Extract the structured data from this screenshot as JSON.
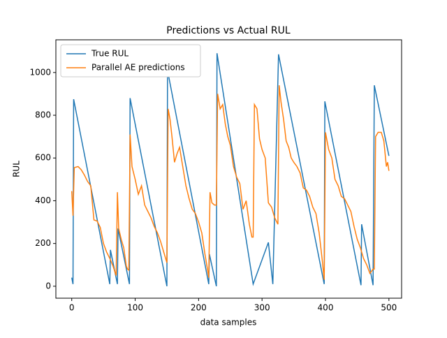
{
  "chart_data": {
    "type": "line",
    "title": "Predictions vs Actual RUL",
    "x_label": "data samples",
    "y_label": "RUL",
    "xlim": [
      -25,
      520
    ],
    "ylim": [
      -56,
      1153
    ],
    "xticks": [
      0,
      100,
      200,
      300,
      400,
      500
    ],
    "yticks": [
      0,
      200,
      400,
      600,
      800,
      1000
    ],
    "legend": "upper left",
    "series": [
      {
        "name": "True RUL",
        "color": "#1f77b4",
        "x": [
          0,
          2,
          3,
          60,
          61,
          72,
          73,
          91,
          92,
          150,
          151,
          216,
          217,
          228,
          229,
          286,
          310,
          317,
          326,
          398,
          399,
          456,
          457,
          475,
          477,
          500
        ],
        "values": [
          40,
          10,
          875,
          10,
          170,
          10,
          270,
          10,
          880,
          0,
          1010,
          10,
          150,
          0,
          1090,
          10,
          205,
          10,
          1085,
          10,
          865,
          5,
          290,
          5,
          940,
          610
        ]
      },
      {
        "name": "Parallel AE predictions",
        "color": "#ff7f0e",
        "x": [
          0,
          2,
          4,
          10,
          15,
          20,
          25,
          30,
          35,
          40,
          45,
          50,
          55,
          60,
          65,
          70,
          72,
          74,
          78,
          82,
          86,
          88,
          90,
          92,
          95,
          100,
          105,
          110,
          115,
          120,
          125,
          130,
          135,
          140,
          145,
          148,
          150,
          152,
          155,
          158,
          162,
          166,
          170,
          175,
          180,
          185,
          190,
          195,
          200,
          205,
          210,
          214,
          216,
          218,
          221,
          225,
          228,
          230,
          234,
          238,
          242,
          246,
          250,
          255,
          260,
          265,
          270,
          275,
          280,
          284,
          286,
          288,
          292,
          296,
          300,
          305,
          310,
          315,
          320,
          325,
          327,
          330,
          334,
          338,
          342,
          346,
          350,
          355,
          360,
          365,
          370,
          375,
          380,
          385,
          390,
          395,
          398,
          400,
          405,
          410,
          415,
          420,
          425,
          430,
          435,
          440,
          445,
          450,
          455,
          460,
          465,
          470,
          475,
          477,
          479,
          483,
          488,
          492,
          496,
          498,
          500
        ],
        "values": [
          445,
          330,
          555,
          560,
          545,
          520,
          490,
          470,
          310,
          305,
          275,
          200,
          160,
          130,
          95,
          50,
          440,
          270,
          220,
          180,
          95,
          80,
          75,
          710,
          560,
          500,
          430,
          470,
          380,
          350,
          320,
          280,
          250,
          210,
          160,
          130,
          110,
          830,
          780,
          700,
          580,
          620,
          650,
          560,
          470,
          410,
          360,
          340,
          300,
          250,
          150,
          80,
          40,
          440,
          390,
          380,
          380,
          900,
          830,
          850,
          760,
          700,
          660,
          560,
          510,
          480,
          360,
          400,
          290,
          230,
          230,
          850,
          830,
          690,
          640,
          600,
          390,
          370,
          320,
          290,
          940,
          860,
          780,
          680,
          650,
          600,
          580,
          560,
          530,
          460,
          450,
          420,
          370,
          340,
          250,
          120,
          30,
          720,
          640,
          600,
          500,
          470,
          420,
          410,
          380,
          350,
          280,
          220,
          180,
          130,
          100,
          60,
          80,
          80,
          700,
          720,
          720,
          680,
          560,
          580,
          540
        ]
      }
    ]
  }
}
